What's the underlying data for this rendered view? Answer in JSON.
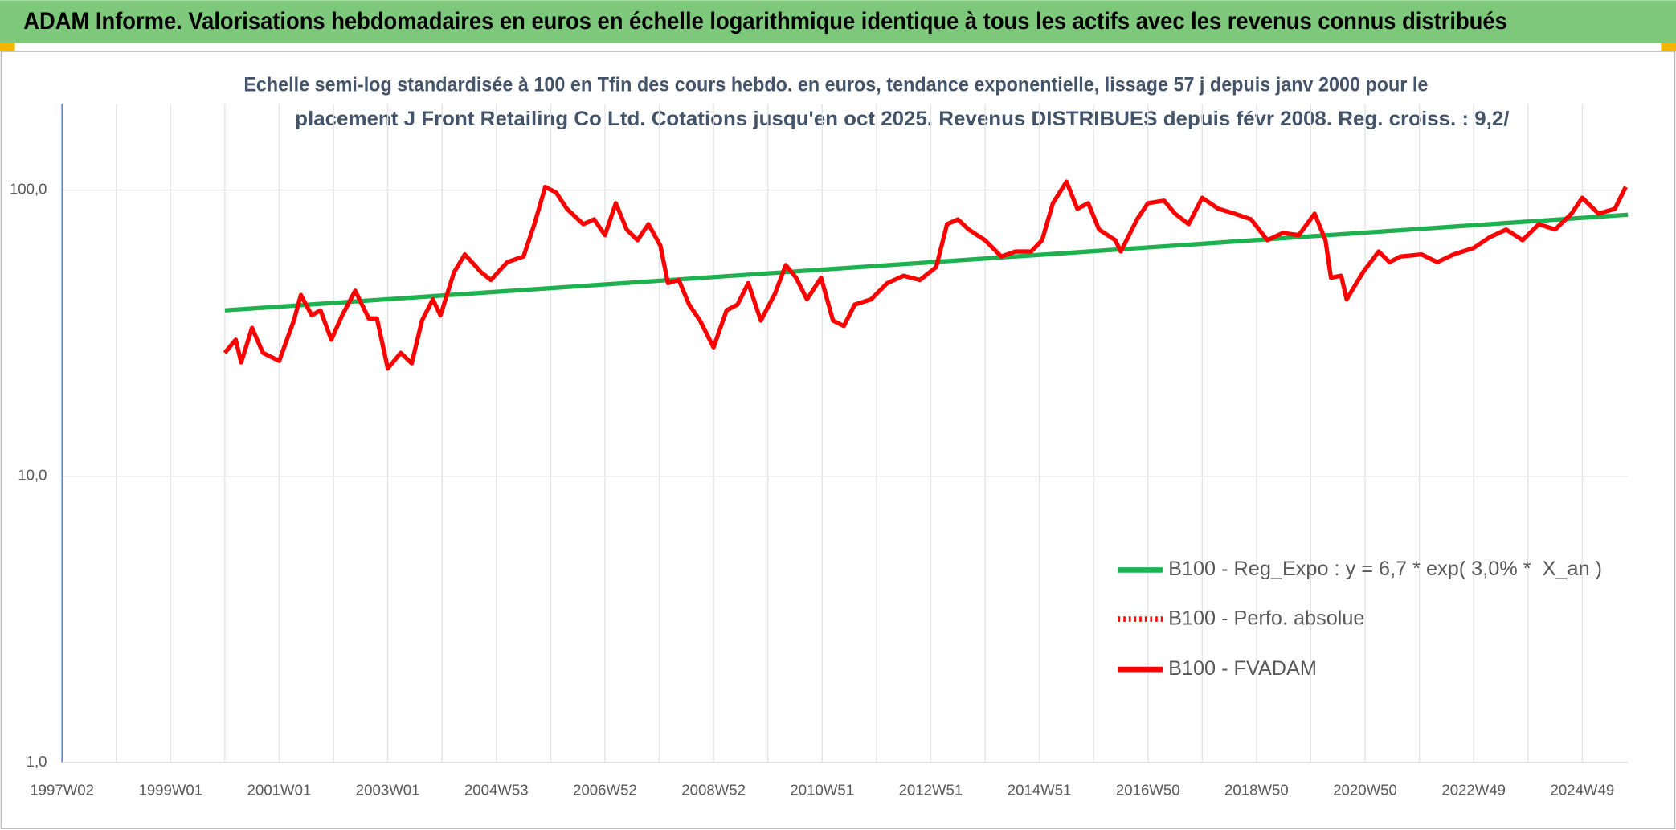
{
  "chart_data": {
    "type": "line",
    "title": "ADAM Informe. Valorisations hebdomadaires en euros en échelle logarithmique identique à tous les actifs avec les revenus connus distribués",
    "subtitle": [
      "Echelle semi-log standardisée à 100 en Tfin des cours hebdo. en euros, tendance exponentielle, lissage 57 j depuis janv 2000 pour le",
      "placement J Front Retailing Co Ltd. Cotations jusqu'en oct 2025. Revenus DISTRIBUES depuis févr 2008. Reg. croiss. : 9,2/"
    ],
    "log_scale": true,
    "grid": true,
    "xlim": [
      1997,
      2025.84
    ],
    "xticks": [
      {
        "value": 1997,
        "label": "1997W02"
      },
      {
        "value": 1999,
        "label": "1999W01"
      },
      {
        "value": 2001,
        "label": "2001W01"
      },
      {
        "value": 2003,
        "label": "2003W01"
      },
      {
        "value": 2005,
        "label": "2004W53"
      },
      {
        "value": 2007,
        "label": "2006W52"
      },
      {
        "value": 2009,
        "label": "2008W52"
      },
      {
        "value": 2011,
        "label": "2010W51"
      },
      {
        "value": 2013,
        "label": "2012W51"
      },
      {
        "value": 2015,
        "label": "2014W51"
      },
      {
        "value": 2017,
        "label": "2016W50"
      },
      {
        "value": 2019,
        "label": "2018W50"
      },
      {
        "value": 2021,
        "label": "2020W50"
      },
      {
        "value": 2023,
        "label": "2022W49"
      },
      {
        "value": 2025,
        "label": "2024W49"
      }
    ],
    "xgrid": [
      1998,
      2000,
      2002,
      2004,
      2006,
      2008,
      2010,
      2012,
      2014,
      2016,
      2018,
      2020,
      2022,
      2024
    ],
    "ylim": [
      1,
      200
    ],
    "yticks": [
      {
        "value": 1,
        "label": "1,0"
      },
      {
        "value": 10,
        "label": "10,0"
      },
      {
        "value": 100,
        "label": "100,0"
      }
    ],
    "series": [
      {
        "name": "B100 - Reg_Expo : y = 6,7 * exp( 3,0% *  X_an )",
        "color": "#1fb050",
        "style": "solid",
        "x": [
          2000.0,
          2025.84
        ],
        "values": [
          38,
          82
        ]
      },
      {
        "name": "B100 - Perfo. absolue",
        "color": "#ff0000",
        "style": "dotted",
        "x": [
          2000.0,
          2000.2,
          2000.3,
          2000.5,
          2000.7,
          2001.0,
          2001.27,
          2001.4,
          2001.6,
          2001.76,
          2001.96,
          2002.16,
          2002.4,
          2002.65,
          2002.8,
          2003.0,
          2003.24,
          2003.44,
          2003.63,
          2003.83,
          2003.97,
          2004.22,
          2004.42,
          2004.72,
          2004.9,
          2005.2,
          2005.5,
          2005.7,
          2005.9,
          2006.1,
          2006.3,
          2006.6,
          2006.8,
          2007.0,
          2007.2,
          2007.4,
          2007.6,
          2007.8,
          2008.02,
          2008.16,
          2008.36,
          2008.55,
          2008.75,
          2009.0,
          2009.24,
          2009.44,
          2009.64,
          2009.87,
          2010.13,
          2010.33,
          2010.52,
          2010.72,
          2010.98,
          2011.2,
          2011.4,
          2011.6,
          2011.9,
          2012.2,
          2012.5,
          2012.8,
          2013.1,
          2013.3,
          2013.5,
          2013.7,
          2014.0,
          2014.3,
          2014.56,
          2014.85,
          2015.05,
          2015.25,
          2015.5,
          2015.7,
          2015.9,
          2016.1,
          2016.4,
          2016.5,
          2016.8,
          2017.0,
          2017.3,
          2017.5,
          2017.75,
          2018.0,
          2018.3,
          2018.6,
          2018.9,
          2019.2,
          2019.48,
          2019.78,
          2020.07,
          2020.27,
          2020.37,
          2020.56,
          2020.66,
          2020.96,
          2021.25,
          2021.45,
          2021.65,
          2022.04,
          2022.33,
          2022.63,
          2023.0,
          2023.3,
          2023.6,
          2023.9,
          2024.2,
          2024.5,
          2024.8,
          2025.0,
          2025.3,
          2025.6,
          2025.8
        ],
        "values": [
          27,
          30,
          25,
          33,
          27,
          25.3,
          35,
          43,
          36.5,
          38,
          30,
          36.5,
          44.5,
          35.6,
          35.6,
          23.8,
          27,
          24.8,
          35,
          41.5,
          36.5,
          51.6,
          59.6,
          51.6,
          48.5,
          56,
          58.6,
          76,
          102.6,
          98,
          86,
          76,
          79,
          69.6,
          90,
          72.8,
          66.8,
          76,
          64,
          47.3,
          48.5,
          39.8,
          35,
          28.2,
          38,
          39.8,
          47.3,
          35,
          43.4,
          54.7,
          49.4,
          41.5,
          49.4,
          35,
          33.5,
          39.8,
          41.5,
          47.3,
          50.2,
          48.5,
          53.8,
          76,
          79,
          72.8,
          66.8,
          58.6,
          61,
          61,
          66.8,
          90,
          107,
          86,
          90,
          72.8,
          66.8,
          61,
          79,
          90,
          91.8,
          82.7,
          76,
          94,
          86,
          82.7,
          79,
          66.8,
          70.8,
          69.6,
          82.7,
          66.8,
          49.4,
          50.2,
          41.5,
          51.6,
          61,
          56,
          58.6,
          59.6,
          56,
          59.6,
          62.8,
          68.5,
          72.8,
          66.8,
          76,
          72.8,
          82.7,
          94,
          82.7,
          86,
          102.6
        ]
      },
      {
        "name": "B100 - FVADAM",
        "color": "#ff0000",
        "style": "solid",
        "x": [
          2000.0,
          2000.2,
          2000.3,
          2000.5,
          2000.7,
          2001.0,
          2001.27,
          2001.4,
          2001.6,
          2001.76,
          2001.96,
          2002.16,
          2002.4,
          2002.65,
          2002.8,
          2003.0,
          2003.24,
          2003.44,
          2003.63,
          2003.83,
          2003.97,
          2004.22,
          2004.42,
          2004.72,
          2004.9,
          2005.2,
          2005.5,
          2005.7,
          2005.9,
          2006.1,
          2006.3,
          2006.6,
          2006.8,
          2007.0,
          2007.2,
          2007.4,
          2007.6,
          2007.8,
          2008.02,
          2008.16,
          2008.36,
          2008.55,
          2008.75,
          2009.0,
          2009.24,
          2009.44,
          2009.64,
          2009.87,
          2010.13,
          2010.33,
          2010.52,
          2010.72,
          2010.98,
          2011.2,
          2011.4,
          2011.6,
          2011.9,
          2012.2,
          2012.5,
          2012.8,
          2013.1,
          2013.3,
          2013.5,
          2013.7,
          2014.0,
          2014.3,
          2014.56,
          2014.85,
          2015.05,
          2015.25,
          2015.5,
          2015.7,
          2015.9,
          2016.1,
          2016.4,
          2016.5,
          2016.8,
          2017.0,
          2017.3,
          2017.5,
          2017.75,
          2018.0,
          2018.3,
          2018.6,
          2018.9,
          2019.2,
          2019.48,
          2019.78,
          2020.07,
          2020.27,
          2020.37,
          2020.56,
          2020.66,
          2020.96,
          2021.25,
          2021.45,
          2021.65,
          2022.04,
          2022.33,
          2022.63,
          2023.0,
          2023.3,
          2023.6,
          2023.9,
          2024.2,
          2024.5,
          2024.8,
          2025.0,
          2025.3,
          2025.6,
          2025.8
        ],
        "values": [
          27,
          30,
          25,
          33,
          27,
          25.3,
          35,
          43,
          36.5,
          38,
          30,
          36.5,
          44.5,
          35.6,
          35.6,
          23.8,
          27,
          24.8,
          35,
          41.5,
          36.5,
          51.6,
          59.6,
          51.6,
          48.5,
          56,
          58.6,
          76,
          102.6,
          98,
          86,
          76,
          79,
          69.6,
          90,
          72.8,
          66.8,
          76,
          64,
          47.3,
          48.5,
          39.8,
          35,
          28.2,
          38,
          39.8,
          47.3,
          35,
          43.4,
          54.7,
          49.4,
          41.5,
          49.4,
          35,
          33.5,
          39.8,
          41.5,
          47.3,
          50.2,
          48.5,
          53.8,
          76,
          79,
          72.8,
          66.8,
          58.6,
          61,
          61,
          66.8,
          90,
          107,
          86,
          90,
          72.8,
          66.8,
          61,
          79,
          90,
          91.8,
          82.7,
          76,
          94,
          86,
          82.7,
          79,
          66.8,
          70.8,
          69.6,
          82.7,
          66.8,
          49.4,
          50.2,
          41.5,
          51.6,
          61,
          56,
          58.6,
          59.6,
          56,
          59.6,
          62.8,
          68.5,
          72.8,
          66.8,
          76,
          72.8,
          82.7,
          94,
          82.7,
          86,
          102.6
        ]
      }
    ]
  }
}
